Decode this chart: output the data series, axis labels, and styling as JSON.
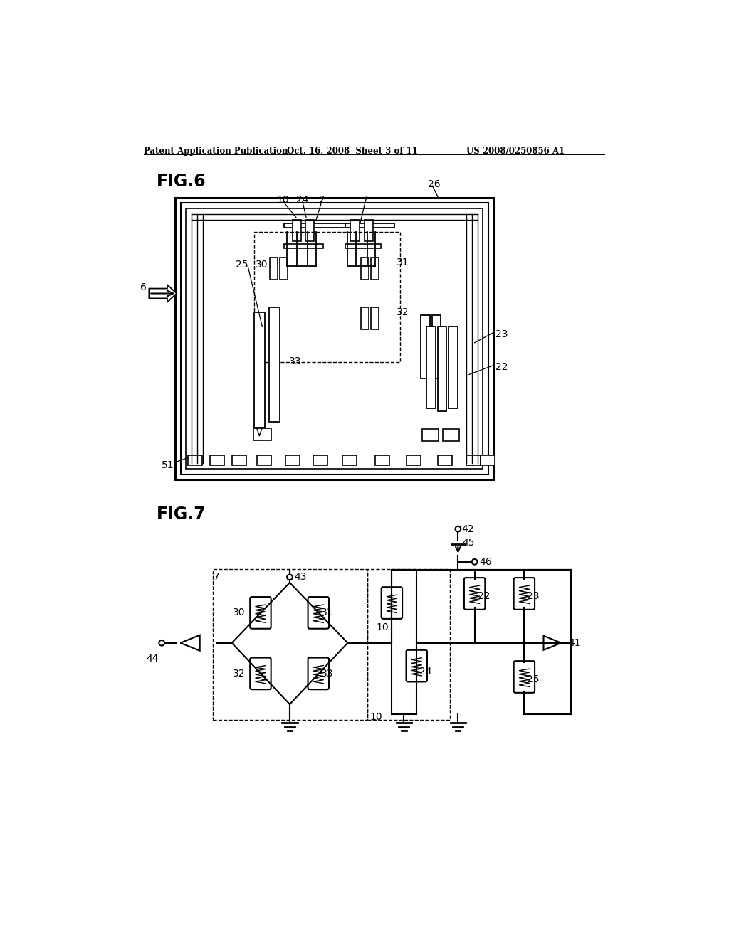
{
  "bg_color": "#ffffff",
  "header_left": "Patent Application Publication",
  "header_center": "Oct. 16, 2008  Sheet 3 of 11",
  "header_right": "US 2008/0250856 A1",
  "fig6_label": "FIG.6",
  "fig7_label": "FIG.7"
}
